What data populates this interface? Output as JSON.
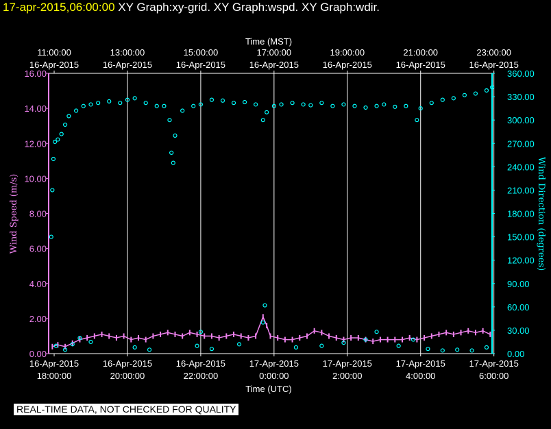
{
  "header": {
    "timestamp": "17-apr-2015,06:00:00",
    "graphs": "XY Graph:xy-grid.  XY Graph:wspd.  XY Graph:wdir."
  },
  "disclaimer": "REAL-TIME DATA, NOT CHECKED FOR QUALITY",
  "colors": {
    "wspd": "#ee82ee",
    "wdir": "#00ffff",
    "grid": "#ffffff",
    "background": "#000000"
  },
  "chart_data": {
    "type": "scatter",
    "top_axis_label": "Time (MST)",
    "bottom_axis_label": "Time (UTC)",
    "y_left_label": "Wind Speed (m/s)",
    "y_right_label": "Wind Direction (degrees)",
    "x_range_hours": [
      10.85,
      22.95
    ],
    "top_ticks": [
      {
        "h": 11,
        "time": "11:00:00",
        "date": "16-Apr-2015"
      },
      {
        "h": 13,
        "time": "13:00:00",
        "date": "16-Apr-2015"
      },
      {
        "h": 15,
        "time": "15:00:00",
        "date": "16-Apr-2015"
      },
      {
        "h": 17,
        "time": "17:00:00",
        "date": "16-Apr-2015"
      },
      {
        "h": 19,
        "time": "19:00:00",
        "date": "16-Apr-2015"
      },
      {
        "h": 21,
        "time": "21:00:00",
        "date": "16-Apr-2015"
      },
      {
        "h": 23,
        "time": "23:00:00",
        "date": "16-Apr-2015"
      }
    ],
    "bottom_ticks": [
      {
        "h": 11,
        "date": "16-Apr-2015",
        "time": "18:00:00"
      },
      {
        "h": 13,
        "date": "16-Apr-2015",
        "time": "20:00:00"
      },
      {
        "h": 15,
        "date": "16-Apr-2015",
        "time": "22:00:00"
      },
      {
        "h": 17,
        "date": "17-Apr-2015",
        "time": "0:00:00"
      },
      {
        "h": 19,
        "date": "17-Apr-2015",
        "time": "2:00:00"
      },
      {
        "h": 21,
        "date": "17-Apr-2015",
        "time": "4:00:00"
      },
      {
        "h": 23,
        "date": "17-Apr-2015",
        "time": "6:00:00"
      }
    ],
    "y_left": {
      "range": [
        0,
        16
      ],
      "ticks": [
        "0.00",
        "2.00",
        "4.00",
        "6.00",
        "8.00",
        "10.00",
        "12.00",
        "14.00",
        "16.00"
      ]
    },
    "y_right": {
      "range": [
        0,
        360
      ],
      "ticks": [
        "0.00",
        "30.00",
        "60.00",
        "90.00",
        "120.00",
        "150.00",
        "180.00",
        "210.00",
        "240.00",
        "270.00",
        "300.00",
        "330.00",
        "360.00"
      ]
    },
    "vertical_grid_at_hours": [
      13,
      15,
      17,
      19,
      21,
      23
    ],
    "series": [
      {
        "name": "Wind Speed (m/s)",
        "axis": "left",
        "points": [
          [
            10.95,
            0.4
          ],
          [
            11.1,
            0.5
          ],
          [
            11.3,
            0.4
          ],
          [
            11.5,
            0.6
          ],
          [
            11.7,
            0.8
          ],
          [
            11.9,
            0.9
          ],
          [
            12.1,
            1.0
          ],
          [
            12.3,
            1.1
          ],
          [
            12.5,
            1.0
          ],
          [
            12.7,
            0.9
          ],
          [
            12.9,
            1.0
          ],
          [
            13.1,
            0.8
          ],
          [
            13.3,
            0.9
          ],
          [
            13.5,
            0.8
          ],
          [
            13.7,
            1.0
          ],
          [
            13.9,
            1.1
          ],
          [
            14.1,
            1.2
          ],
          [
            14.3,
            1.1
          ],
          [
            14.5,
            1.0
          ],
          [
            14.7,
            1.2
          ],
          [
            14.9,
            1.1
          ],
          [
            15.1,
            1.0
          ],
          [
            15.3,
            1.0
          ],
          [
            15.5,
            0.9
          ],
          [
            15.7,
            1.0
          ],
          [
            15.9,
            1.1
          ],
          [
            16.1,
            1.0
          ],
          [
            16.3,
            0.9
          ],
          [
            16.5,
            1.0
          ],
          [
            16.7,
            2.1
          ],
          [
            16.8,
            1.6
          ],
          [
            16.9,
            1.0
          ],
          [
            17.1,
            0.9
          ],
          [
            17.3,
            0.8
          ],
          [
            17.5,
            0.8
          ],
          [
            17.7,
            0.9
          ],
          [
            17.9,
            1.0
          ],
          [
            18.1,
            1.3
          ],
          [
            18.3,
            1.2
          ],
          [
            18.5,
            1.0
          ],
          [
            18.7,
            0.9
          ],
          [
            18.9,
            0.8
          ],
          [
            19.1,
            0.9
          ],
          [
            19.3,
            0.9
          ],
          [
            19.5,
            0.8
          ],
          [
            19.7,
            0.7
          ],
          [
            19.9,
            0.8
          ],
          [
            20.1,
            0.8
          ],
          [
            20.3,
            0.8
          ],
          [
            20.5,
            0.8
          ],
          [
            20.7,
            0.9
          ],
          [
            20.9,
            0.8
          ],
          [
            21.1,
            0.9
          ],
          [
            21.3,
            1.0
          ],
          [
            21.5,
            1.1
          ],
          [
            21.7,
            1.2
          ],
          [
            21.9,
            1.1
          ],
          [
            22.1,
            1.2
          ],
          [
            22.3,
            1.3
          ],
          [
            22.5,
            1.2
          ],
          [
            22.7,
            1.3
          ],
          [
            22.9,
            1.1
          ]
        ]
      },
      {
        "name": "Wind Direction (degrees)",
        "axis": "right",
        "points": [
          [
            10.92,
            150
          ],
          [
            10.95,
            210
          ],
          [
            10.98,
            250
          ],
          [
            11.02,
            272
          ],
          [
            11.1,
            275
          ],
          [
            11.2,
            282
          ],
          [
            11.3,
            294
          ],
          [
            11.4,
            305
          ],
          [
            11.6,
            312
          ],
          [
            11.8,
            318
          ],
          [
            12.0,
            320
          ],
          [
            12.2,
            322
          ],
          [
            12.5,
            324
          ],
          [
            12.8,
            322
          ],
          [
            13.0,
            326
          ],
          [
            13.2,
            328
          ],
          [
            13.5,
            322
          ],
          [
            13.8,
            318
          ],
          [
            14.0,
            318
          ],
          [
            14.15,
            300
          ],
          [
            14.2,
            258
          ],
          [
            14.25,
            245
          ],
          [
            14.3,
            280
          ],
          [
            14.5,
            312
          ],
          [
            14.8,
            318
          ],
          [
            15.0,
            320
          ],
          [
            15.3,
            326
          ],
          [
            15.6,
            325
          ],
          [
            15.9,
            322
          ],
          [
            16.2,
            323
          ],
          [
            16.5,
            320
          ],
          [
            16.7,
            300
          ],
          [
            16.8,
            310
          ],
          [
            17.0,
            318
          ],
          [
            17.2,
            320
          ],
          [
            17.5,
            322
          ],
          [
            17.8,
            320
          ],
          [
            18.0,
            319
          ],
          [
            18.3,
            322
          ],
          [
            18.6,
            318
          ],
          [
            18.9,
            320
          ],
          [
            19.2,
            318
          ],
          [
            19.5,
            316
          ],
          [
            19.8,
            318
          ],
          [
            20.0,
            320
          ],
          [
            20.3,
            317
          ],
          [
            20.6,
            318
          ],
          [
            20.9,
            300
          ],
          [
            21.0,
            315
          ],
          [
            21.3,
            322
          ],
          [
            21.6,
            326
          ],
          [
            21.9,
            328
          ],
          [
            22.2,
            332
          ],
          [
            22.5,
            334
          ],
          [
            22.8,
            338
          ],
          [
            22.95,
            342
          ],
          [
            11.05,
            10
          ],
          [
            11.3,
            5
          ],
          [
            11.5,
            12
          ],
          [
            11.7,
            20
          ],
          [
            12.0,
            15
          ],
          [
            13.2,
            8
          ],
          [
            13.6,
            5
          ],
          [
            14.9,
            10
          ],
          [
            15.0,
            28
          ],
          [
            15.3,
            6
          ],
          [
            16.05,
            12
          ],
          [
            16.7,
            40
          ],
          [
            16.75,
            62
          ],
          [
            17.6,
            8
          ],
          [
            18.3,
            10
          ],
          [
            18.9,
            14
          ],
          [
            19.5,
            18
          ],
          [
            19.8,
            28
          ],
          [
            20.4,
            10
          ],
          [
            20.8,
            18
          ],
          [
            21.2,
            6
          ],
          [
            21.6,
            4
          ],
          [
            22.0,
            5
          ],
          [
            22.4,
            4
          ],
          [
            22.8,
            8
          ]
        ]
      }
    ]
  }
}
